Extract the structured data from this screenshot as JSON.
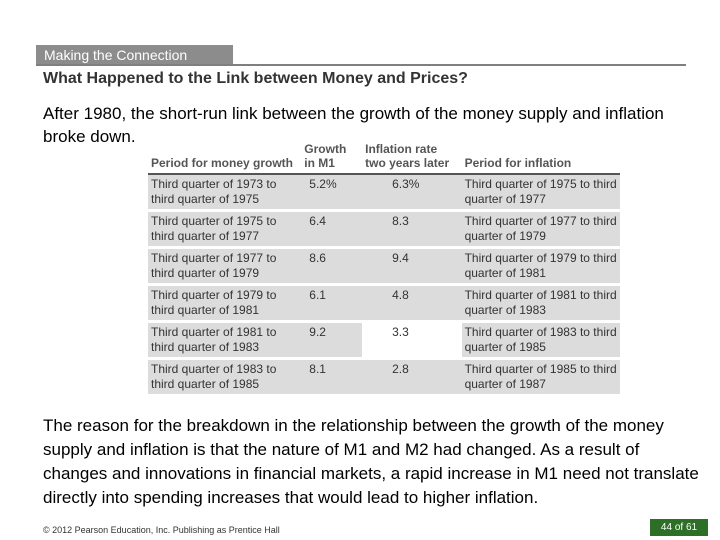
{
  "slide": {
    "tag": "Making the Connection",
    "heading": "What Happened to the Link between Money and Prices?",
    "intro": "After 1980, the short-run link between the growth of the money supply and inflation broke down.",
    "outro": "The reason for the breakdown in the relationship between the growth of the money supply and inflation is that the nature of M1 and M2 had changed. As a result of changes and innovations in financial markets, a rapid increase in M1 need not translate directly into spending increases that would lead to higher inflation.",
    "footer": "© 2012 Pearson Education, Inc. Publishing as Prentice Hall",
    "page": "44 of 61"
  },
  "table": {
    "headers": [
      {
        "line1": "",
        "line2": "Period for money growth"
      },
      {
        "line1": "Growth",
        "line2": "in M1"
      },
      {
        "line1": "Inflation rate",
        "line2": "two years later"
      },
      {
        "line1": "",
        "line2": "Period for inflation"
      }
    ],
    "rows": [
      {
        "money_line1": "Third quarter of 1973 to",
        "money_line2": "third quarter of 1975",
        "growth": "5.2%",
        "inflation": "6.3%",
        "inf_line1": "Third quarter of 1975 to third",
        "inf_line2": "quarter of 1977"
      },
      {
        "money_line1": "Third quarter of 1975 to",
        "money_line2": "third quarter of 1977",
        "growth": "6.4",
        "inflation": "8.3",
        "inf_line1": "Third quarter of 1977 to third",
        "inf_line2": "quarter of 1979"
      },
      {
        "money_line1": "Third quarter of 1977 to",
        "money_line2": "third quarter of 1979",
        "growth": "8.6",
        "inflation": "9.4",
        "inf_line1": "Third quarter of 1979 to third",
        "inf_line2": "quarter of 1981"
      },
      {
        "money_line1": "Third quarter of 1979 to",
        "money_line2": "third quarter of 1981",
        "growth": "6.1",
        "inflation": "4.8",
        "inf_line1": "Third quarter of 1981 to third",
        "inf_line2": "quarter of 1983"
      },
      {
        "money_line1": "Third quarter of 1981 to",
        "money_line2": "third quarter of 1983",
        "growth": "9.2",
        "inflation": "3.3",
        "inf_line1": "Third quarter of 1983 to third",
        "inf_line2": "quarter of 1985"
      },
      {
        "money_line1": "Third quarter of 1983 to",
        "money_line2": "third quarter of 1985",
        "growth": "8.1",
        "inflation": "2.8",
        "inf_line1": "Third quarter of 1985 to third",
        "inf_line2": "quarter of 1987"
      }
    ]
  }
}
